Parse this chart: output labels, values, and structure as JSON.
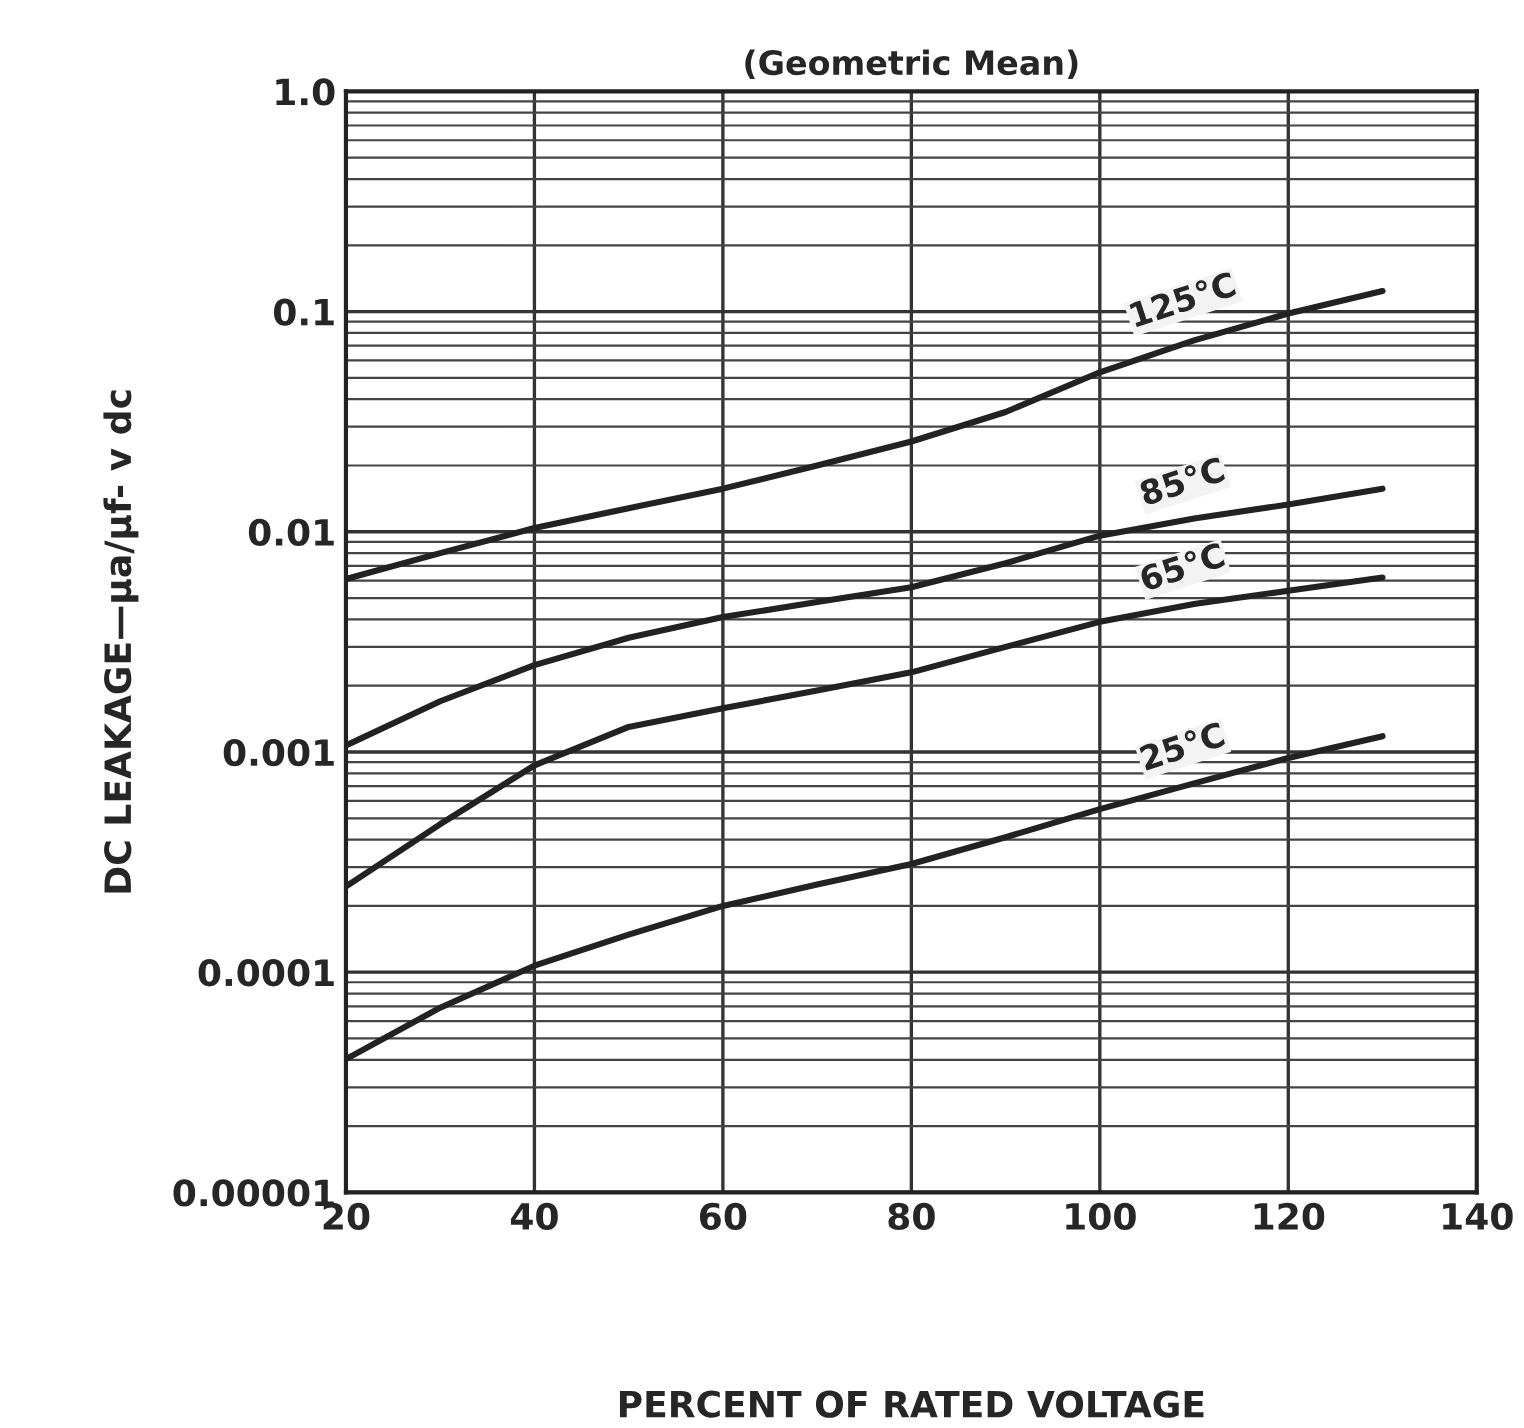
{
  "chart_data": {
    "type": "line",
    "title": "(Geometric Mean)",
    "xlabel": "PERCENT OF RATED VOLTAGE",
    "ylabel": "DC LEAKAGE—μa/μf- v dc",
    "x": [
      20,
      30,
      40,
      50,
      60,
      70,
      80,
      90,
      100,
      110,
      120,
      130
    ],
    "series": [
      {
        "name": "125°C",
        "color": "#222222",
        "values": [
          0.0061,
          0.008,
          0.0104,
          0.0128,
          0.0157,
          0.02,
          0.0257,
          0.035,
          0.053,
          0.074,
          0.098,
          0.124
        ]
      },
      {
        "name": "85°C",
        "color": "#222222",
        "values": [
          0.00107,
          0.0017,
          0.00248,
          0.0033,
          0.0041,
          0.0048,
          0.0056,
          0.0072,
          0.0096,
          0.0115,
          0.0133,
          0.0157
        ]
      },
      {
        "name": "65°C",
        "color": "#222222",
        "values": [
          0.000245,
          0.00047,
          0.00087,
          0.0013,
          0.00158,
          0.0019,
          0.0023,
          0.003,
          0.0039,
          0.0047,
          0.0054,
          0.0062
        ]
      },
      {
        "name": "25°C",
        "color": "#222222",
        "values": [
          4.03e-05,
          6.9e-05,
          0.000107,
          0.000148,
          0.0002,
          0.00025,
          0.00031,
          0.00041,
          0.00055,
          0.00072,
          0.00094,
          0.00118
        ]
      }
    ],
    "log": "y",
    "xlim": [
      20,
      140
    ],
    "xticks": [
      20,
      40,
      60,
      80,
      100,
      120,
      140
    ],
    "ylim": [
      1e-05,
      1
    ],
    "yticks": [
      {
        "value": 1e-05,
        "label": "0.00001"
      },
      0.0001,
      0.001,
      0.01,
      0.1,
      {
        "value": 1,
        "label": "1.0"
      }
    ],
    "grid": true,
    "legend": false,
    "marker": "none",
    "line_style": "solid"
  }
}
